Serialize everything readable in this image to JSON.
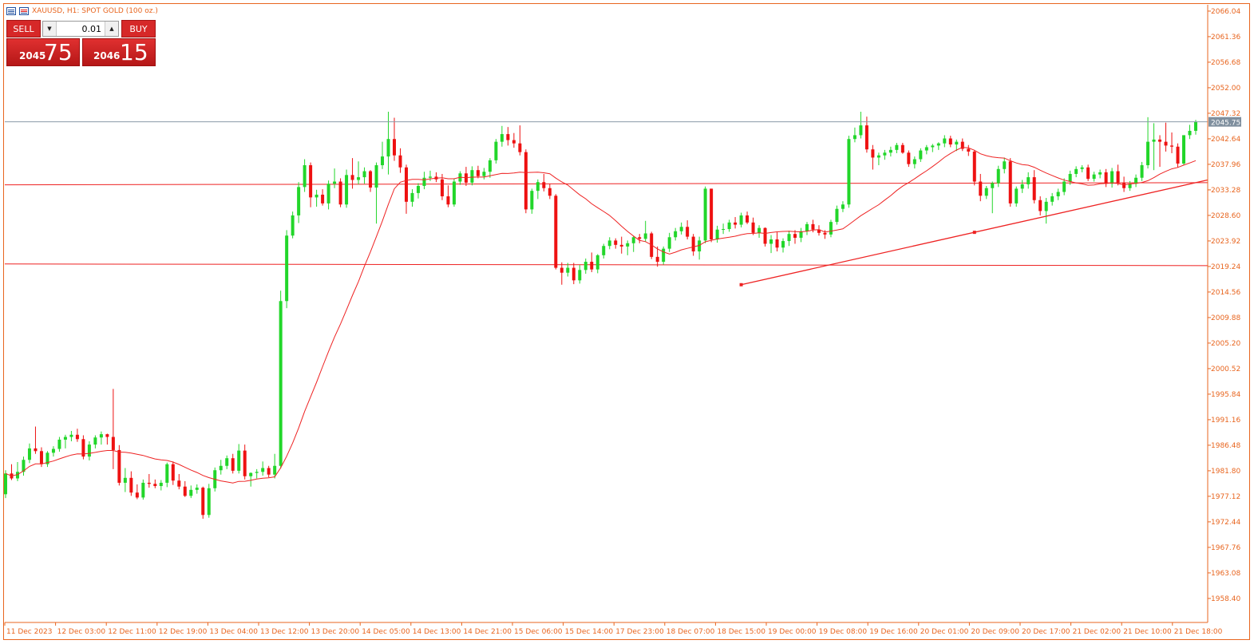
{
  "header": {
    "title": "XAUUSD, H1:  SPOT GOLD (100 oz.)",
    "icons": [
      "market-watch-icon",
      "chart-icon"
    ]
  },
  "trade_panel": {
    "sell_label": "SELL",
    "buy_label": "BUY",
    "volume": "0.01",
    "sell_price_prefix": "2045",
    "sell_price_big": "75",
    "buy_price_prefix": "2046",
    "buy_price_big": "15"
  },
  "colors": {
    "bull": "#22d62a",
    "bear": "#ee1111",
    "ma": "#ee2222",
    "axis_text": "#e8651f",
    "bid_line": "#8a9aa8",
    "price_tag_bg": "#7f8f9e"
  },
  "chart_data": {
    "type": "candlestick",
    "symbol": "XAUUSD",
    "timeframe": "H1",
    "current_price": "2045.75",
    "ylim": [
      1954.0,
      2067.2
    ],
    "y_ticks": [
      "2066.04",
      "2061.36",
      "2056.68",
      "2052.00",
      "2047.32",
      "2042.64",
      "2037.96",
      "2033.28",
      "2028.60",
      "2023.92",
      "2019.24",
      "2014.56",
      "2009.88",
      "2005.20",
      "2000.52",
      "1995.84",
      "1991.16",
      "1986.48",
      "1981.80",
      "1977.12",
      "1972.44",
      "1967.76",
      "1963.08",
      "1958.40"
    ],
    "x_ticks": [
      "11 Dec 2023",
      "12 Dec 03:00",
      "12 Dec 11:00",
      "12 Dec 19:00",
      "13 Dec 04:00",
      "13 Dec 12:00",
      "13 Dec 20:00",
      "14 Dec 05:00",
      "14 Dec 13:00",
      "14 Dec 21:00",
      "15 Dec 06:00",
      "15 Dec 14:00",
      "17 Dec 23:00",
      "18 Dec 07:00",
      "18 Dec 15:00",
      "19 Dec 00:00",
      "19 Dec 08:00",
      "19 Dec 16:00",
      "20 Dec 01:00",
      "20 Dec 09:00",
      "20 Dec 17:00",
      "21 Dec 02:00",
      "21 Dec 10:00",
      "21 Dec 18:00"
    ],
    "ohlc": [
      [
        1977.5,
        1981.9,
        1976.8,
        1981.3
      ],
      [
        1981.3,
        1983.0,
        1980.1,
        1980.4
      ],
      [
        1980.4,
        1983.4,
        1979.9,
        1981.6
      ],
      [
        1981.6,
        1984.4,
        1980.9,
        1983.8
      ],
      [
        1983.8,
        1986.8,
        1983.2,
        1985.9
      ],
      [
        1985.9,
        1989.9,
        1984.9,
        1985.4
      ],
      [
        1985.4,
        1986.1,
        1982.5,
        1983.0
      ],
      [
        1983.0,
        1985.4,
        1982.5,
        1985.1
      ],
      [
        1985.1,
        1986.3,
        1984.4,
        1985.8
      ],
      [
        1985.8,
        1988.0,
        1985.3,
        1987.5
      ],
      [
        1987.5,
        1988.4,
        1985.9,
        1988.0
      ],
      [
        1988.0,
        1989.1,
        1987.2,
        1988.4
      ],
      [
        1988.4,
        1989.5,
        1987.1,
        1987.6
      ],
      [
        1987.6,
        1988.3,
        1983.9,
        1984.4
      ],
      [
        1984.4,
        1987.2,
        1983.7,
        1986.6
      ],
      [
        1986.6,
        1988.3,
        1985.9,
        1987.9
      ],
      [
        1987.9,
        1989.0,
        1986.6,
        1988.5
      ],
      [
        1988.5,
        1988.6,
        1986.6,
        1988.0
      ],
      [
        1988.0,
        1996.8,
        1982.1,
        1985.6
      ],
      [
        1985.6,
        1986.5,
        1979.1,
        1979.6
      ],
      [
        1979.6,
        1982.3,
        1977.9,
        1980.5
      ],
      [
        1980.5,
        1981.7,
        1977.2,
        1977.8
      ],
      [
        1977.8,
        1979.3,
        1976.6,
        1976.9
      ],
      [
        1976.9,
        1980.2,
        1976.5,
        1979.6
      ],
      [
        1979.6,
        1981.2,
        1978.7,
        1979.4
      ],
      [
        1979.4,
        1980.2,
        1978.6,
        1979.0
      ],
      [
        1979.0,
        1980.1,
        1978.2,
        1979.6
      ],
      [
        1979.6,
        1983.3,
        1978.8,
        1983.0
      ],
      [
        1983.0,
        1983.5,
        1979.2,
        1980.0
      ],
      [
        1980.0,
        1981.2,
        1978.4,
        1978.9
      ],
      [
        1978.9,
        1979.9,
        1977.0,
        1977.2
      ],
      [
        1977.2,
        1979.1,
        1976.8,
        1978.3
      ],
      [
        1978.3,
        1979.3,
        1977.6,
        1978.7
      ],
      [
        1978.7,
        1978.9,
        1973.0,
        1973.7
      ],
      [
        1973.7,
        1979.4,
        1973.2,
        1978.6
      ],
      [
        1978.6,
        1982.4,
        1978.0,
        1981.9
      ],
      [
        1981.9,
        1983.8,
        1981.1,
        1982.7
      ],
      [
        1982.7,
        1984.6,
        1982.1,
        1984.1
      ],
      [
        1984.1,
        1984.9,
        1981.3,
        1981.8
      ],
      [
        1981.8,
        1986.7,
        1981.3,
        1985.5
      ],
      [
        1985.5,
        1986.6,
        1980.2,
        1980.8
      ],
      [
        1980.8,
        1981.5,
        1978.9,
        1981.4
      ],
      [
        1981.4,
        1982.1,
        1980.4,
        1981.6
      ],
      [
        1981.6,
        1983.5,
        1980.9,
        1982.3
      ],
      [
        1982.3,
        1982.7,
        1980.6,
        1981.1
      ],
      [
        1981.1,
        1984.9,
        1980.4,
        1982.7
      ],
      [
        1982.7,
        2014.8,
        1982.2,
        2012.9
      ],
      [
        2012.9,
        2025.9,
        2011.6,
        2024.9
      ],
      [
        2024.9,
        2029.3,
        2024.4,
        2028.6
      ],
      [
        2028.6,
        2034.7,
        2027.2,
        2033.8
      ],
      [
        2033.8,
        2038.9,
        2032.9,
        2037.8
      ],
      [
        2037.8,
        2038.3,
        2030.1,
        2031.9
      ],
      [
        2031.9,
        2033.3,
        2030.2,
        2032.4
      ],
      [
        2032.4,
        2033.4,
        2030.4,
        2030.8
      ],
      [
        2030.8,
        2035.0,
        2029.7,
        2034.4
      ],
      [
        2034.4,
        2037.2,
        2033.6,
        2034.8
      ],
      [
        2034.8,
        2035.4,
        2030.1,
        2030.6
      ],
      [
        2030.6,
        2037.0,
        2030.0,
        2036.0
      ],
      [
        2036.0,
        2039.1,
        2033.5,
        2035.1
      ],
      [
        2035.1,
        2038.5,
        2034.3,
        2035.6
      ],
      [
        2035.6,
        2037.4,
        2034.4,
        2036.7
      ],
      [
        2036.7,
        2036.9,
        2032.9,
        2033.7
      ],
      [
        2033.7,
        2038.3,
        2027.1,
        2037.8
      ],
      [
        2037.8,
        2042.1,
        2037.1,
        2039.4
      ],
      [
        2039.4,
        2047.6,
        2036.1,
        2042.6
      ],
      [
        2042.6,
        2046.5,
        2038.6,
        2039.6
      ],
      [
        2039.6,
        2040.9,
        2036.4,
        2037.4
      ],
      [
        2037.4,
        2037.9,
        2028.9,
        2031.1
      ],
      [
        2031.1,
        2033.4,
        2030.2,
        2032.7
      ],
      [
        2032.7,
        2034.5,
        2031.7,
        2034.0
      ],
      [
        2034.0,
        2036.6,
        2033.4,
        2035.5
      ],
      [
        2035.5,
        2036.8,
        2034.9,
        2035.7
      ],
      [
        2035.7,
        2036.5,
        2034.7,
        2035.2
      ],
      [
        2035.2,
        2036.2,
        2031.4,
        2032.1
      ],
      [
        2032.1,
        2034.1,
        2030.1,
        2030.6
      ],
      [
        2030.6,
        2035.4,
        2030.2,
        2034.8
      ],
      [
        2034.8,
        2036.7,
        2034.2,
        2036.3
      ],
      [
        2036.3,
        2037.5,
        2034.0,
        2034.6
      ],
      [
        2034.6,
        2037.6,
        2034.1,
        2036.9
      ],
      [
        2036.9,
        2037.7,
        2035.4,
        2035.8
      ],
      [
        2035.8,
        2037.3,
        2035.2,
        2036.6
      ],
      [
        2036.6,
        2039.1,
        2035.5,
        2038.7
      ],
      [
        2038.7,
        2042.6,
        2038.1,
        2042.1
      ],
      [
        2042.1,
        2045.0,
        2041.2,
        2043.5
      ],
      [
        2043.5,
        2044.8,
        2041.4,
        2042.4
      ],
      [
        2042.4,
        2043.7,
        2041.0,
        2041.8
      ],
      [
        2041.8,
        2045.1,
        2039.6,
        2040.2
      ],
      [
        2040.2,
        2040.7,
        2029.0,
        2029.7
      ],
      [
        2029.7,
        2033.5,
        2028.9,
        2033.1
      ],
      [
        2033.1,
        2035.2,
        2031.6,
        2034.7
      ],
      [
        2034.7,
        2036.2,
        2033.0,
        2033.6
      ],
      [
        2033.6,
        2034.4,
        2031.6,
        2032.2
      ],
      [
        2032.2,
        2032.5,
        2018.7,
        2019.0
      ],
      [
        2019.0,
        2020.0,
        2015.9,
        2018.1
      ],
      [
        2018.1,
        2019.9,
        2017.4,
        2019.0
      ],
      [
        2019.0,
        2019.9,
        2016.0,
        2016.7
      ],
      [
        2016.7,
        2019.5,
        2016.1,
        2018.6
      ],
      [
        2018.6,
        2020.7,
        2017.9,
        2020.1
      ],
      [
        2020.1,
        2021.8,
        2018.2,
        2018.7
      ],
      [
        2018.7,
        2021.5,
        2018.0,
        2021.3
      ],
      [
        2021.3,
        2023.4,
        2020.7,
        2023.0
      ],
      [
        2023.0,
        2024.6,
        2022.4,
        2024.0
      ],
      [
        2024.0,
        2024.4,
        2022.5,
        2023.2
      ],
      [
        2023.2,
        2024.7,
        2021.6,
        2022.9
      ],
      [
        2022.9,
        2024.0,
        2021.3,
        2023.5
      ],
      [
        2023.5,
        2024.8,
        2021.9,
        2024.6
      ],
      [
        2024.6,
        2025.2,
        2023.5,
        2024.3
      ],
      [
        2024.3,
        2027.6,
        2023.8,
        2025.3
      ],
      [
        2025.3,
        2025.6,
        2020.6,
        2021.0
      ],
      [
        2021.0,
        2022.9,
        2019.2,
        2020.1
      ],
      [
        2020.1,
        2022.9,
        2019.6,
        2022.5
      ],
      [
        2022.5,
        2025.4,
        2021.9,
        2024.6
      ],
      [
        2024.6,
        2026.3,
        2024.0,
        2025.7
      ],
      [
        2025.7,
        2027.3,
        2025.1,
        2026.5
      ],
      [
        2026.5,
        2027.7,
        2024.2,
        2024.7
      ],
      [
        2024.7,
        2025.2,
        2021.2,
        2022.0
      ],
      [
        2022.0,
        2024.7,
        2020.5,
        2024.0
      ],
      [
        2024.0,
        2033.9,
        2023.5,
        2033.5
      ],
      [
        2033.5,
        2033.5,
        2023.7,
        2024.2
      ],
      [
        2024.2,
        2026.7,
        2023.6,
        2026.0
      ],
      [
        2026.0,
        2027.1,
        2025.2,
        2026.1
      ],
      [
        2026.1,
        2027.8,
        2025.6,
        2027.3
      ],
      [
        2027.3,
        2028.3,
        2026.2,
        2026.9
      ],
      [
        2026.9,
        2029.1,
        2026.4,
        2028.6
      ],
      [
        2028.6,
        2029.3,
        2027.0,
        2027.3
      ],
      [
        2027.3,
        2028.2,
        2025.0,
        2025.4
      ],
      [
        2025.4,
        2026.8,
        2024.5,
        2026.3
      ],
      [
        2026.3,
        2026.4,
        2022.9,
        2023.4
      ],
      [
        2023.4,
        2025.0,
        2021.7,
        2024.2
      ],
      [
        2024.2,
        2025.5,
        2022.0,
        2022.7
      ],
      [
        2022.7,
        2024.4,
        2021.8,
        2023.9
      ],
      [
        2023.9,
        2025.8,
        2023.0,
        2025.2
      ],
      [
        2025.2,
        2025.9,
        2023.4,
        2024.5
      ],
      [
        2024.5,
        2026.3,
        2023.7,
        2025.7
      ],
      [
        2025.7,
        2027.4,
        2025.0,
        2027.0
      ],
      [
        2027.0,
        2027.8,
        2025.5,
        2026.0
      ],
      [
        2026.0,
        2026.8,
        2024.9,
        2025.4
      ],
      [
        2025.4,
        2025.9,
        2024.3,
        2025.1
      ],
      [
        2025.1,
        2027.8,
        2024.6,
        2027.4
      ],
      [
        2027.4,
        2030.4,
        2026.9,
        2029.8
      ],
      [
        2029.8,
        2031.2,
        2029.2,
        2030.6
      ],
      [
        2030.6,
        2043.2,
        2030.0,
        2042.6
      ],
      [
        2042.6,
        2044.7,
        2042.0,
        2043.3
      ],
      [
        2043.3,
        2047.6,
        2042.7,
        2045.1
      ],
      [
        2045.1,
        2046.7,
        2040.1,
        2040.7
      ],
      [
        2040.7,
        2041.5,
        2037.0,
        2039.2
      ],
      [
        2039.2,
        2040.1,
        2037.8,
        2039.6
      ],
      [
        2039.6,
        2040.6,
        2038.8,
        2040.1
      ],
      [
        2040.1,
        2041.2,
        2039.4,
        2040.6
      ],
      [
        2040.6,
        2041.9,
        2040.0,
        2041.5
      ],
      [
        2041.5,
        2041.9,
        2039.9,
        2040.1
      ],
      [
        2040.1,
        2040.5,
        2037.5,
        2038.0
      ],
      [
        2038.0,
        2039.4,
        2037.2,
        2038.9
      ],
      [
        2038.9,
        2040.9,
        2038.4,
        2040.5
      ],
      [
        2040.5,
        2041.5,
        2039.8,
        2041.1
      ],
      [
        2041.1,
        2041.7,
        2040.2,
        2041.4
      ],
      [
        2041.4,
        2042.0,
        2040.6,
        2041.8
      ],
      [
        2041.8,
        2043.3,
        2041.1,
        2042.7
      ],
      [
        2042.7,
        2043.2,
        2041.1,
        2041.6
      ],
      [
        2041.6,
        2042.5,
        2040.4,
        2042.1
      ],
      [
        2042.1,
        2042.7,
        2040.4,
        2040.8
      ],
      [
        2040.8,
        2041.5,
        2039.5,
        2040.3
      ],
      [
        2040.3,
        2040.6,
        2034.1,
        2034.8
      ],
      [
        2034.8,
        2036.2,
        2031.2,
        2032.2
      ],
      [
        2032.2,
        2034.0,
        2031.6,
        2033.6
      ],
      [
        2033.6,
        2034.8,
        2029.0,
        2034.5
      ],
      [
        2034.5,
        2037.7,
        2033.8,
        2037.1
      ],
      [
        2037.1,
        2039.2,
        2036.3,
        2038.5
      ],
      [
        2038.5,
        2039.1,
        2030.2,
        2030.8
      ],
      [
        2030.8,
        2033.9,
        2030.2,
        2033.5
      ],
      [
        2033.5,
        2035.1,
        2032.7,
        2034.3
      ],
      [
        2034.3,
        2036.5,
        2033.5,
        2035.6
      ],
      [
        2035.6,
        2036.9,
        2030.8,
        2031.4
      ],
      [
        2031.4,
        2032.1,
        2028.6,
        2029.4
      ],
      [
        2029.4,
        2031.8,
        2027.1,
        2031.1
      ],
      [
        2031.1,
        2032.7,
        2030.4,
        2032.1
      ],
      [
        2032.1,
        2033.5,
        2031.4,
        2032.9
      ],
      [
        2032.9,
        2035.4,
        2032.3,
        2034.8
      ],
      [
        2034.8,
        2036.8,
        2034.2,
        2036.2
      ],
      [
        2036.2,
        2037.6,
        2035.6,
        2037.1
      ],
      [
        2037.1,
        2037.8,
        2036.5,
        2037.4
      ],
      [
        2037.4,
        2037.9,
        2034.9,
        2035.3
      ],
      [
        2035.3,
        2036.6,
        2034.8,
        2036.1
      ],
      [
        2036.1,
        2037.0,
        2035.4,
        2036.5
      ],
      [
        2036.5,
        2037.1,
        2033.8,
        2034.4
      ],
      [
        2034.4,
        2037.3,
        2033.7,
        2036.7
      ],
      [
        2036.7,
        2037.9,
        2034.1,
        2034.6
      ],
      [
        2034.6,
        2035.7,
        2032.9,
        2033.6
      ],
      [
        2033.6,
        2034.9,
        2033.1,
        2034.4
      ],
      [
        2034.4,
        2036.1,
        2033.8,
        2035.5
      ],
      [
        2035.5,
        2038.4,
        2034.9,
        2037.8
      ],
      [
        2037.8,
        2046.6,
        2037.2,
        2042.1
      ],
      [
        2042.1,
        2045.5,
        2036.9,
        2042.5
      ],
      [
        2042.5,
        2043.3,
        2037.5,
        2042.1
      ],
      [
        2042.1,
        2045.6,
        2040.3,
        2041.4
      ],
      [
        2041.4,
        2043.8,
        2040.0,
        2041.2
      ],
      [
        2041.2,
        2041.8,
        2037.4,
        2038.1
      ],
      [
        2038.1,
        2043.3,
        2037.8,
        2043.3
      ],
      [
        2043.3,
        2045.2,
        2042.6,
        2044.1
      ],
      [
        2044.1,
        2046.1,
        2043.4,
        2045.75
      ]
    ]
  }
}
